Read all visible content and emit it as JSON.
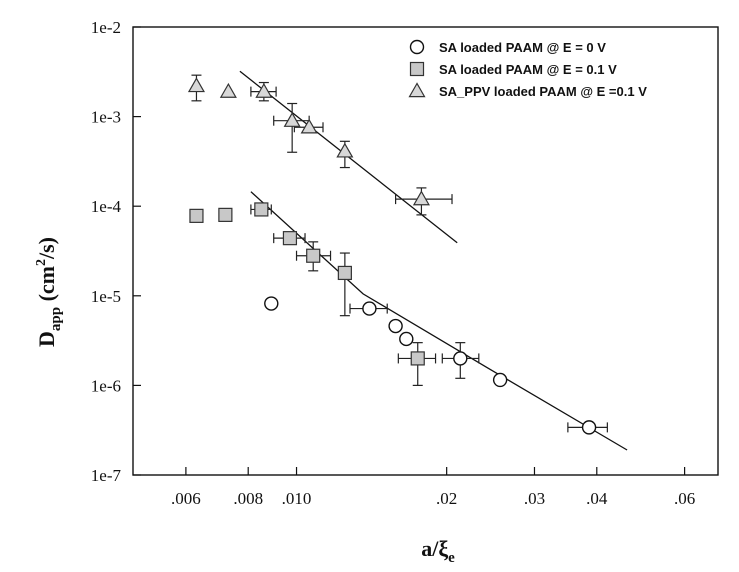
{
  "chart_data": {
    "type": "scatter",
    "xlabel": {
      "main": "a/ξ",
      "sub": "e"
    },
    "ylabel": {
      "main": "D",
      "sub": "app",
      "unit_pre": " (cm",
      "sup": "2",
      "unit_post": "/s)"
    },
    "xscale": "log",
    "yscale": "log",
    "xlim": [
      0.0047,
      0.07
    ],
    "ylim": [
      1e-07,
      0.01
    ],
    "x_ticks": [
      {
        "value": 0.006,
        "label": ".006"
      },
      {
        "value": 0.008,
        "label": ".008"
      },
      {
        "value": 0.01,
        "label": ".010"
      },
      {
        "value": 0.02,
        "label": ".02"
      },
      {
        "value": 0.03,
        "label": ".03"
      },
      {
        "value": 0.04,
        "label": ".04"
      },
      {
        "value": 0.06,
        "label": ".06"
      }
    ],
    "y_ticks": [
      {
        "value": 1e-07,
        "label": "1e-7"
      },
      {
        "value": 1e-06,
        "label": "1e-6"
      },
      {
        "value": 1e-05,
        "label": "1e-5"
      },
      {
        "value": 0.0001,
        "label": "1e-4"
      },
      {
        "value": 0.001,
        "label": "1e-3"
      },
      {
        "value": 0.01,
        "label": "1e-2"
      }
    ],
    "grid": false,
    "legend_position": "top-right",
    "series": [
      {
        "name": "SA loaded PAAM @ E = 0 V",
        "marker": "circle",
        "fill": "#ffffff",
        "points": [
          {
            "x": 0.0089,
            "y": 8.2e-06
          },
          {
            "x": 0.014,
            "y": 7.2e-06,
            "xerr": [
              0.0128,
              0.0152
            ]
          },
          {
            "x": 0.0158,
            "y": 4.6e-06
          },
          {
            "x": 0.0166,
            "y": 3.3e-06
          },
          {
            "x": 0.0213,
            "y": 2e-06,
            "xerr": [
              0.0196,
              0.0232
            ],
            "yerr": [
              1.2e-06,
              3e-06
            ]
          },
          {
            "x": 0.0256,
            "y": 1.15e-06
          },
          {
            "x": 0.0386,
            "y": 3.4e-07,
            "xerr": [
              0.035,
              0.042
            ]
          }
        ]
      },
      {
        "name": "SA loaded PAAM @ E = 0.1 V",
        "marker": "square",
        "fill": "#c8c8c8",
        "points": [
          {
            "x": 0.0063,
            "y": 7.8e-05
          },
          {
            "x": 0.0072,
            "y": 8e-05
          },
          {
            "x": 0.0085,
            "y": 9.2e-05,
            "xerr": [
              0.0081,
              0.0089
            ]
          },
          {
            "x": 0.0097,
            "y": 4.4e-05,
            "xerr": [
              0.009,
              0.0104
            ]
          },
          {
            "x": 0.0108,
            "y": 2.8e-05,
            "xerr": [
              0.01,
              0.0117
            ],
            "yerr": [
              1.9e-05,
              4e-05
            ]
          },
          {
            "x": 0.0125,
            "y": 1.8e-05,
            "yerr": [
              6e-06,
              3e-05
            ]
          },
          {
            "x": 0.0175,
            "y": 2e-06,
            "xerr": [
              0.016,
              0.019
            ],
            "yerr": [
              1e-06,
              3e-06
            ]
          }
        ]
      },
      {
        "name": "SA_PPV loaded PAAM @ E =0.1 V",
        "marker": "triangle",
        "fill": "#d8d8d8",
        "points": [
          {
            "x": 0.0063,
            "y": 0.0022,
            "yerr": [
              0.0015,
              0.0029
            ]
          },
          {
            "x": 0.0073,
            "y": 0.0019
          },
          {
            "x": 0.0086,
            "y": 0.0019,
            "xerr": [
              0.0081,
              0.0091
            ],
            "yerr": [
              0.0015,
              0.0024
            ]
          },
          {
            "x": 0.0098,
            "y": 0.0009,
            "xerr": [
              0.009,
              0.0106
            ],
            "yerr": [
              0.0004,
              0.0014
            ]
          },
          {
            "x": 0.0106,
            "y": 0.00076,
            "xerr": [
              0.0099,
              0.0113
            ]
          },
          {
            "x": 0.0125,
            "y": 0.00041,
            "yerr": [
              0.00027,
              0.00053
            ]
          },
          {
            "x": 0.0178,
            "y": 0.00012,
            "xerr": [
              0.0158,
              0.0205
            ],
            "yerr": [
              8e-05,
              0.00016
            ]
          }
        ]
      }
    ],
    "fit_lines": [
      {
        "x": [
          0.0077,
          0.021
        ],
        "y": [
          0.0032,
          3.9e-05
        ]
      },
      {
        "x": [
          0.0081,
          0.0136,
          0.024,
          0.046
        ],
        "y": [
          0.000145,
          1.05e-05,
          1.6e-06,
          1.9e-07
        ]
      }
    ]
  }
}
